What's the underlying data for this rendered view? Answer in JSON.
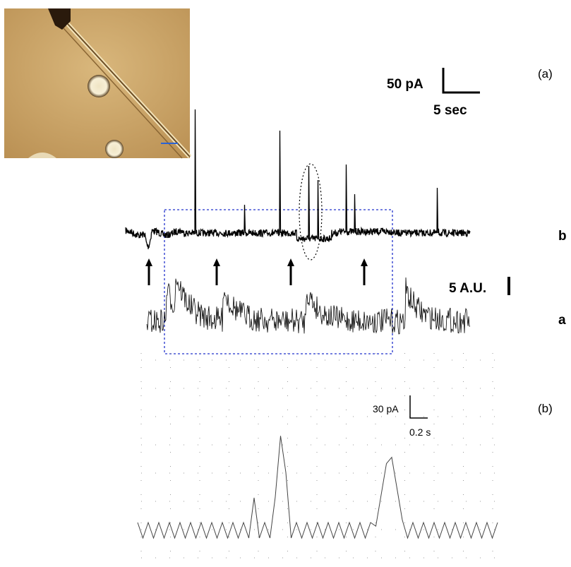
{
  "panel_a": {
    "label": "(a)",
    "scale_current": "50 pA",
    "scale_time": "5 sec",
    "trace_b_label": "b",
    "scale_fluorescence": "5 A.U.",
    "trace_a_label": "a"
  },
  "panel_b": {
    "label": "(b)",
    "scale_current": "30 pA",
    "scale_time": "0.2 s"
  }
}
